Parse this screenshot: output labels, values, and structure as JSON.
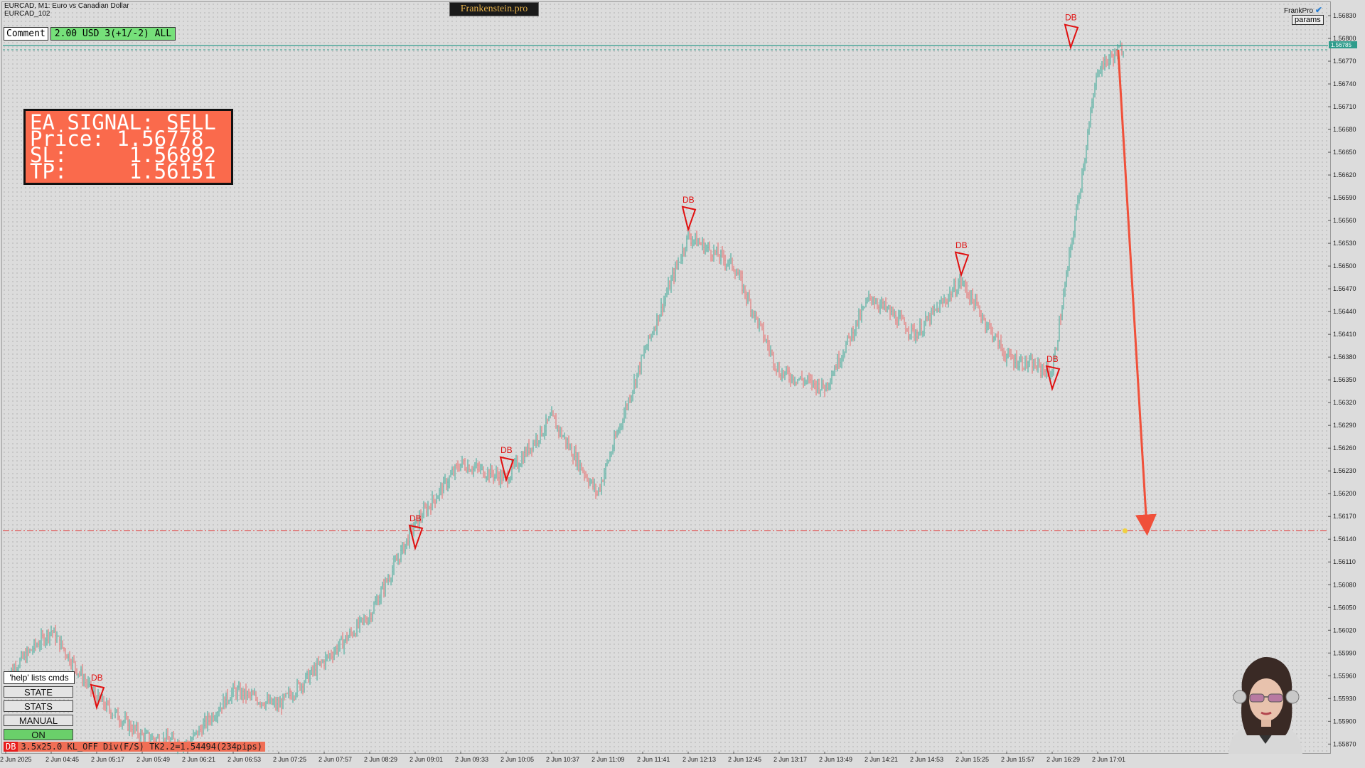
{
  "window": {
    "symbol_line": "EURCAD, M1:  Euro vs Canadian Dollar",
    "template_line": "EURCAD_102",
    "brand": "Frankenstein.pro",
    "indicator_name": "FrankPro",
    "params_label": "params"
  },
  "comment": {
    "button_label": "Comment",
    "value": "2.00 USD 3(+1/-2) ALL"
  },
  "signal": {
    "header": "EA SIGNAL: SELL",
    "price_label": "Price:",
    "price": "1.56778",
    "sl_label": "SL:",
    "sl": "1.56892",
    "tp_label": "TP:",
    "tp": "1.56151"
  },
  "side_panel": {
    "help": "'help' lists cmds",
    "buttons": [
      "STATE",
      "STATS",
      "MANUAL",
      "ON"
    ]
  },
  "status": {
    "tag": "DB",
    "text": "3.5x25.0 KL_OFF Div(F/S) TK2.2=1.54494(234pips)"
  },
  "colors": {
    "bull": "#3aa896",
    "bear": "#e86a6a",
    "pattern": "#e01010",
    "signal_bg": "#fa6a4c",
    "price_tag": "#2f9c8c",
    "arrow": "#f0503a",
    "on_button": "#6ad06a"
  },
  "icons": [
    "checkmark-icon",
    "avatar-portrait"
  ],
  "chart_data": {
    "type": "candlestick",
    "symbol": "EURCAD",
    "timeframe": "M1",
    "current_price": "1.56785",
    "y_ticks": [
      "1.56830",
      "1.56800",
      "1.56770",
      "1.56740",
      "1.56710",
      "1.56680",
      "1.56650",
      "1.56620",
      "1.56590",
      "1.56560",
      "1.56530",
      "1.56500",
      "1.56470",
      "1.56440",
      "1.56410",
      "1.56380",
      "1.56350",
      "1.56320",
      "1.56290",
      "1.56260",
      "1.56230",
      "1.56200",
      "1.56170",
      "1.56140",
      "1.56110",
      "1.56080",
      "1.56050",
      "1.56020",
      "1.55990",
      "1.55960",
      "1.55930",
      "1.55900",
      "1.55870"
    ],
    "x_ticks": [
      "2 Jun 2025",
      "2 Jun 04:45",
      "2 Jun 05:17",
      "2 Jun 05:49",
      "2 Jun 06:21",
      "2 Jun 06:53",
      "2 Jun 07:25",
      "2 Jun 07:57",
      "2 Jun 08:29",
      "2 Jun 09:01",
      "2 Jun 09:33",
      "2 Jun 10:05",
      "2 Jun 10:37",
      "2 Jun 11:09",
      "2 Jun 11:41",
      "2 Jun 12:13",
      "2 Jun 12:45",
      "2 Jun 13:17",
      "2 Jun 13:49",
      "2 Jun 14:21",
      "2 Jun 14:53",
      "2 Jun 15:25",
      "2 Jun 15:57",
      "2 Jun 16:29",
      "2 Jun 17:01"
    ],
    "y_range": [
      1.5586,
      1.56845
    ],
    "tp_level": 1.56151,
    "price_path": [
      {
        "x": "2 Jun 2025",
        "y": 1.5596
      },
      {
        "x": "2 Jun 04:45",
        "y": 1.5602
      },
      {
        "x": "2 Jun 05:17",
        "y": 1.5593
      },
      {
        "x": "2 Jun 05:49",
        "y": 1.5588
      },
      {
        "x": "2 Jun 06:21",
        "y": 1.5587
      },
      {
        "x": "2 Jun 06:53",
        "y": 1.5594
      },
      {
        "x": "2 Jun 07:25",
        "y": 1.5592
      },
      {
        "x": "2 Jun 07:57",
        "y": 1.5598
      },
      {
        "x": "2 Jun 08:29",
        "y": 1.5604
      },
      {
        "x": "2 Jun 09:01",
        "y": 1.5616
      },
      {
        "x": "2 Jun 09:33",
        "y": 1.5624
      },
      {
        "x": "2 Jun 10:05",
        "y": 1.5622
      },
      {
        "x": "2 Jun 10:37",
        "y": 1.563
      },
      {
        "x": "2 Jun 11:09",
        "y": 1.562
      },
      {
        "x": "2 Jun 11:41",
        "y": 1.5638
      },
      {
        "x": "2 Jun 12:13",
        "y": 1.5654
      },
      {
        "x": "2 Jun 12:45",
        "y": 1.565
      },
      {
        "x": "2 Jun 13:17",
        "y": 1.5636
      },
      {
        "x": "2 Jun 13:49",
        "y": 1.5634
      },
      {
        "x": "2 Jun 14:21",
        "y": 1.5646
      },
      {
        "x": "2 Jun 14:53",
        "y": 1.5641
      },
      {
        "x": "2 Jun 15:25",
        "y": 1.5648
      },
      {
        "x": "2 Jun 15:57",
        "y": 1.5638
      },
      {
        "x": "2 Jun 16:29",
        "y": 1.5636
      },
      {
        "x": "2 Jun 17:01",
        "y": 1.5676
      },
      {
        "x": "2 Jun 17:20",
        "y": 1.5679
      }
    ],
    "patterns": [
      {
        "label": "DB",
        "x": "2 Jun 05:17",
        "y": 1.5595
      },
      {
        "label": "DB",
        "x": "2 Jun 09:01",
        "y": 1.5616
      },
      {
        "label": "DB",
        "x": "2 Jun 10:05",
        "y": 1.5625
      },
      {
        "label": "DB",
        "x": "2 Jun 12:13",
        "y": 1.5658
      },
      {
        "label": "DB",
        "x": "2 Jun 15:25",
        "y": 1.5652
      },
      {
        "label": "DB",
        "x": "2 Jun 16:29",
        "y": 1.5637
      },
      {
        "label": "DB",
        "x": "2 Jun 17:01",
        "y": 1.5682
      }
    ]
  }
}
